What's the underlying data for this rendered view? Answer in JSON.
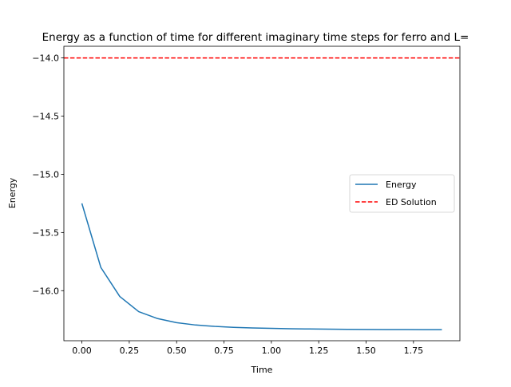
{
  "chart_data": {
    "type": "line",
    "title": "Energy as a function of time for different imaginary time steps for ferro and L=",
    "xlabel": "Time",
    "ylabel": "Energy",
    "xlim": [
      -0.095,
      1.995
    ],
    "ylim": [
      -16.43,
      -13.9
    ],
    "xticks": [
      0.0,
      0.25,
      0.5,
      0.75,
      1.0,
      1.25,
      1.5,
      1.75
    ],
    "xtick_labels": [
      "0.00",
      "0.25",
      "0.50",
      "0.75",
      "1.00",
      "1.25",
      "1.50",
      "1.75"
    ],
    "yticks": [
      -14.0,
      -14.5,
      -15.0,
      -15.5,
      -16.0
    ],
    "ytick_labels": [
      "−14.0",
      "−14.5",
      "−15.0",
      "−15.5",
      "−16.0"
    ],
    "grid": false,
    "legend_position": "center-right",
    "series": [
      {
        "name": "Energy",
        "style": "solid",
        "color": "#1f77b4",
        "x": [
          0.0,
          0.1,
          0.2,
          0.3,
          0.4,
          0.5,
          0.6,
          0.7,
          0.8,
          0.9,
          1.0,
          1.1,
          1.2,
          1.3,
          1.4,
          1.5,
          1.6,
          1.7,
          1.8,
          1.9
        ],
        "y": [
          -15.25,
          -15.8,
          -16.05,
          -16.18,
          -16.24,
          -16.275,
          -16.295,
          -16.307,
          -16.315,
          -16.32,
          -16.324,
          -16.327,
          -16.329,
          -16.331,
          -16.332,
          -16.333,
          -16.334,
          -16.334,
          -16.335,
          -16.335
        ]
      },
      {
        "name": "ED Solution",
        "style": "dashed",
        "color": "#ff0000",
        "y_constant": -14.0
      }
    ]
  }
}
